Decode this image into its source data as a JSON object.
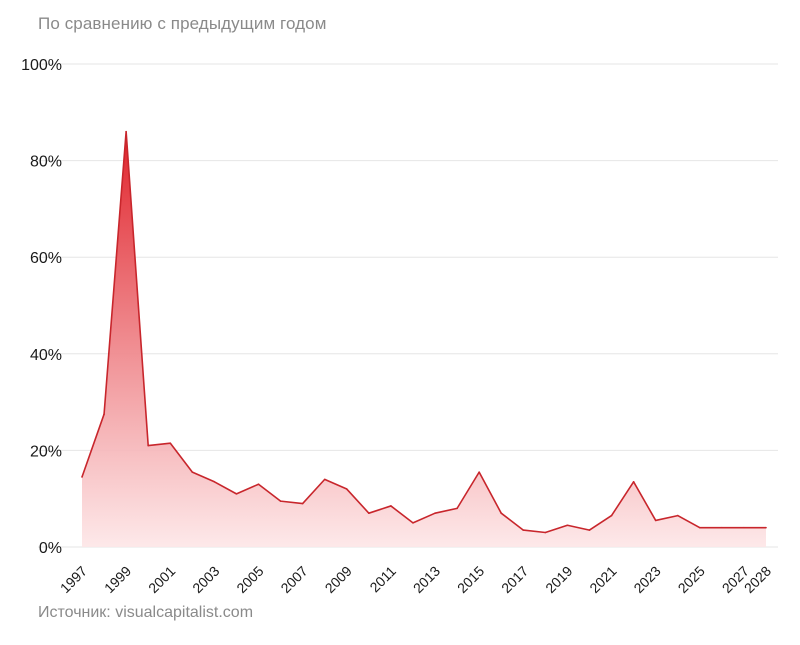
{
  "subtitle": "По сравнению с предыдущим годом",
  "source": "Источник: visualcapitalist.com",
  "colors": {
    "line": "#c8262c",
    "fill_top": "#e0222a",
    "fill_bottom": "#fde6e7",
    "grid": "#e6e6e6",
    "text": "#1a1a1a",
    "muted": "#8a8a8a"
  },
  "chart_data": {
    "type": "area",
    "title": "",
    "xlabel": "",
    "ylabel": "",
    "ylim": [
      0,
      100
    ],
    "yticks": [
      0,
      20,
      40,
      60,
      80,
      100
    ],
    "ytick_labels": [
      "0%",
      "20%",
      "40%",
      "60%",
      "80%",
      "100%"
    ],
    "xticks": [
      1997,
      1999,
      2001,
      2003,
      2005,
      2007,
      2009,
      2011,
      2013,
      2015,
      2017,
      2019,
      2021,
      2023,
      2025,
      2027,
      2028
    ],
    "grid": true,
    "series": [
      {
        "x": [
          1997,
          1998,
          1999,
          2000,
          2001,
          2002,
          2003,
          2004,
          2005,
          2006,
          2007,
          2008,
          2009,
          2010,
          2011,
          2012,
          2013,
          2014,
          2015,
          2016,
          2017,
          2018,
          2019,
          2020,
          2021,
          2022,
          2023,
          2024,
          2025,
          2026,
          2027,
          2028
        ],
        "values": [
          14.5,
          27.5,
          86,
          21,
          21.5,
          15.5,
          13.5,
          11,
          13,
          9.5,
          9,
          14,
          12,
          7,
          8.5,
          5,
          7,
          8,
          15.5,
          7,
          3.5,
          3,
          4.5,
          3.5,
          6.5,
          13.5,
          5.5,
          6.5,
          4,
          4,
          4,
          4
        ]
      }
    ]
  }
}
